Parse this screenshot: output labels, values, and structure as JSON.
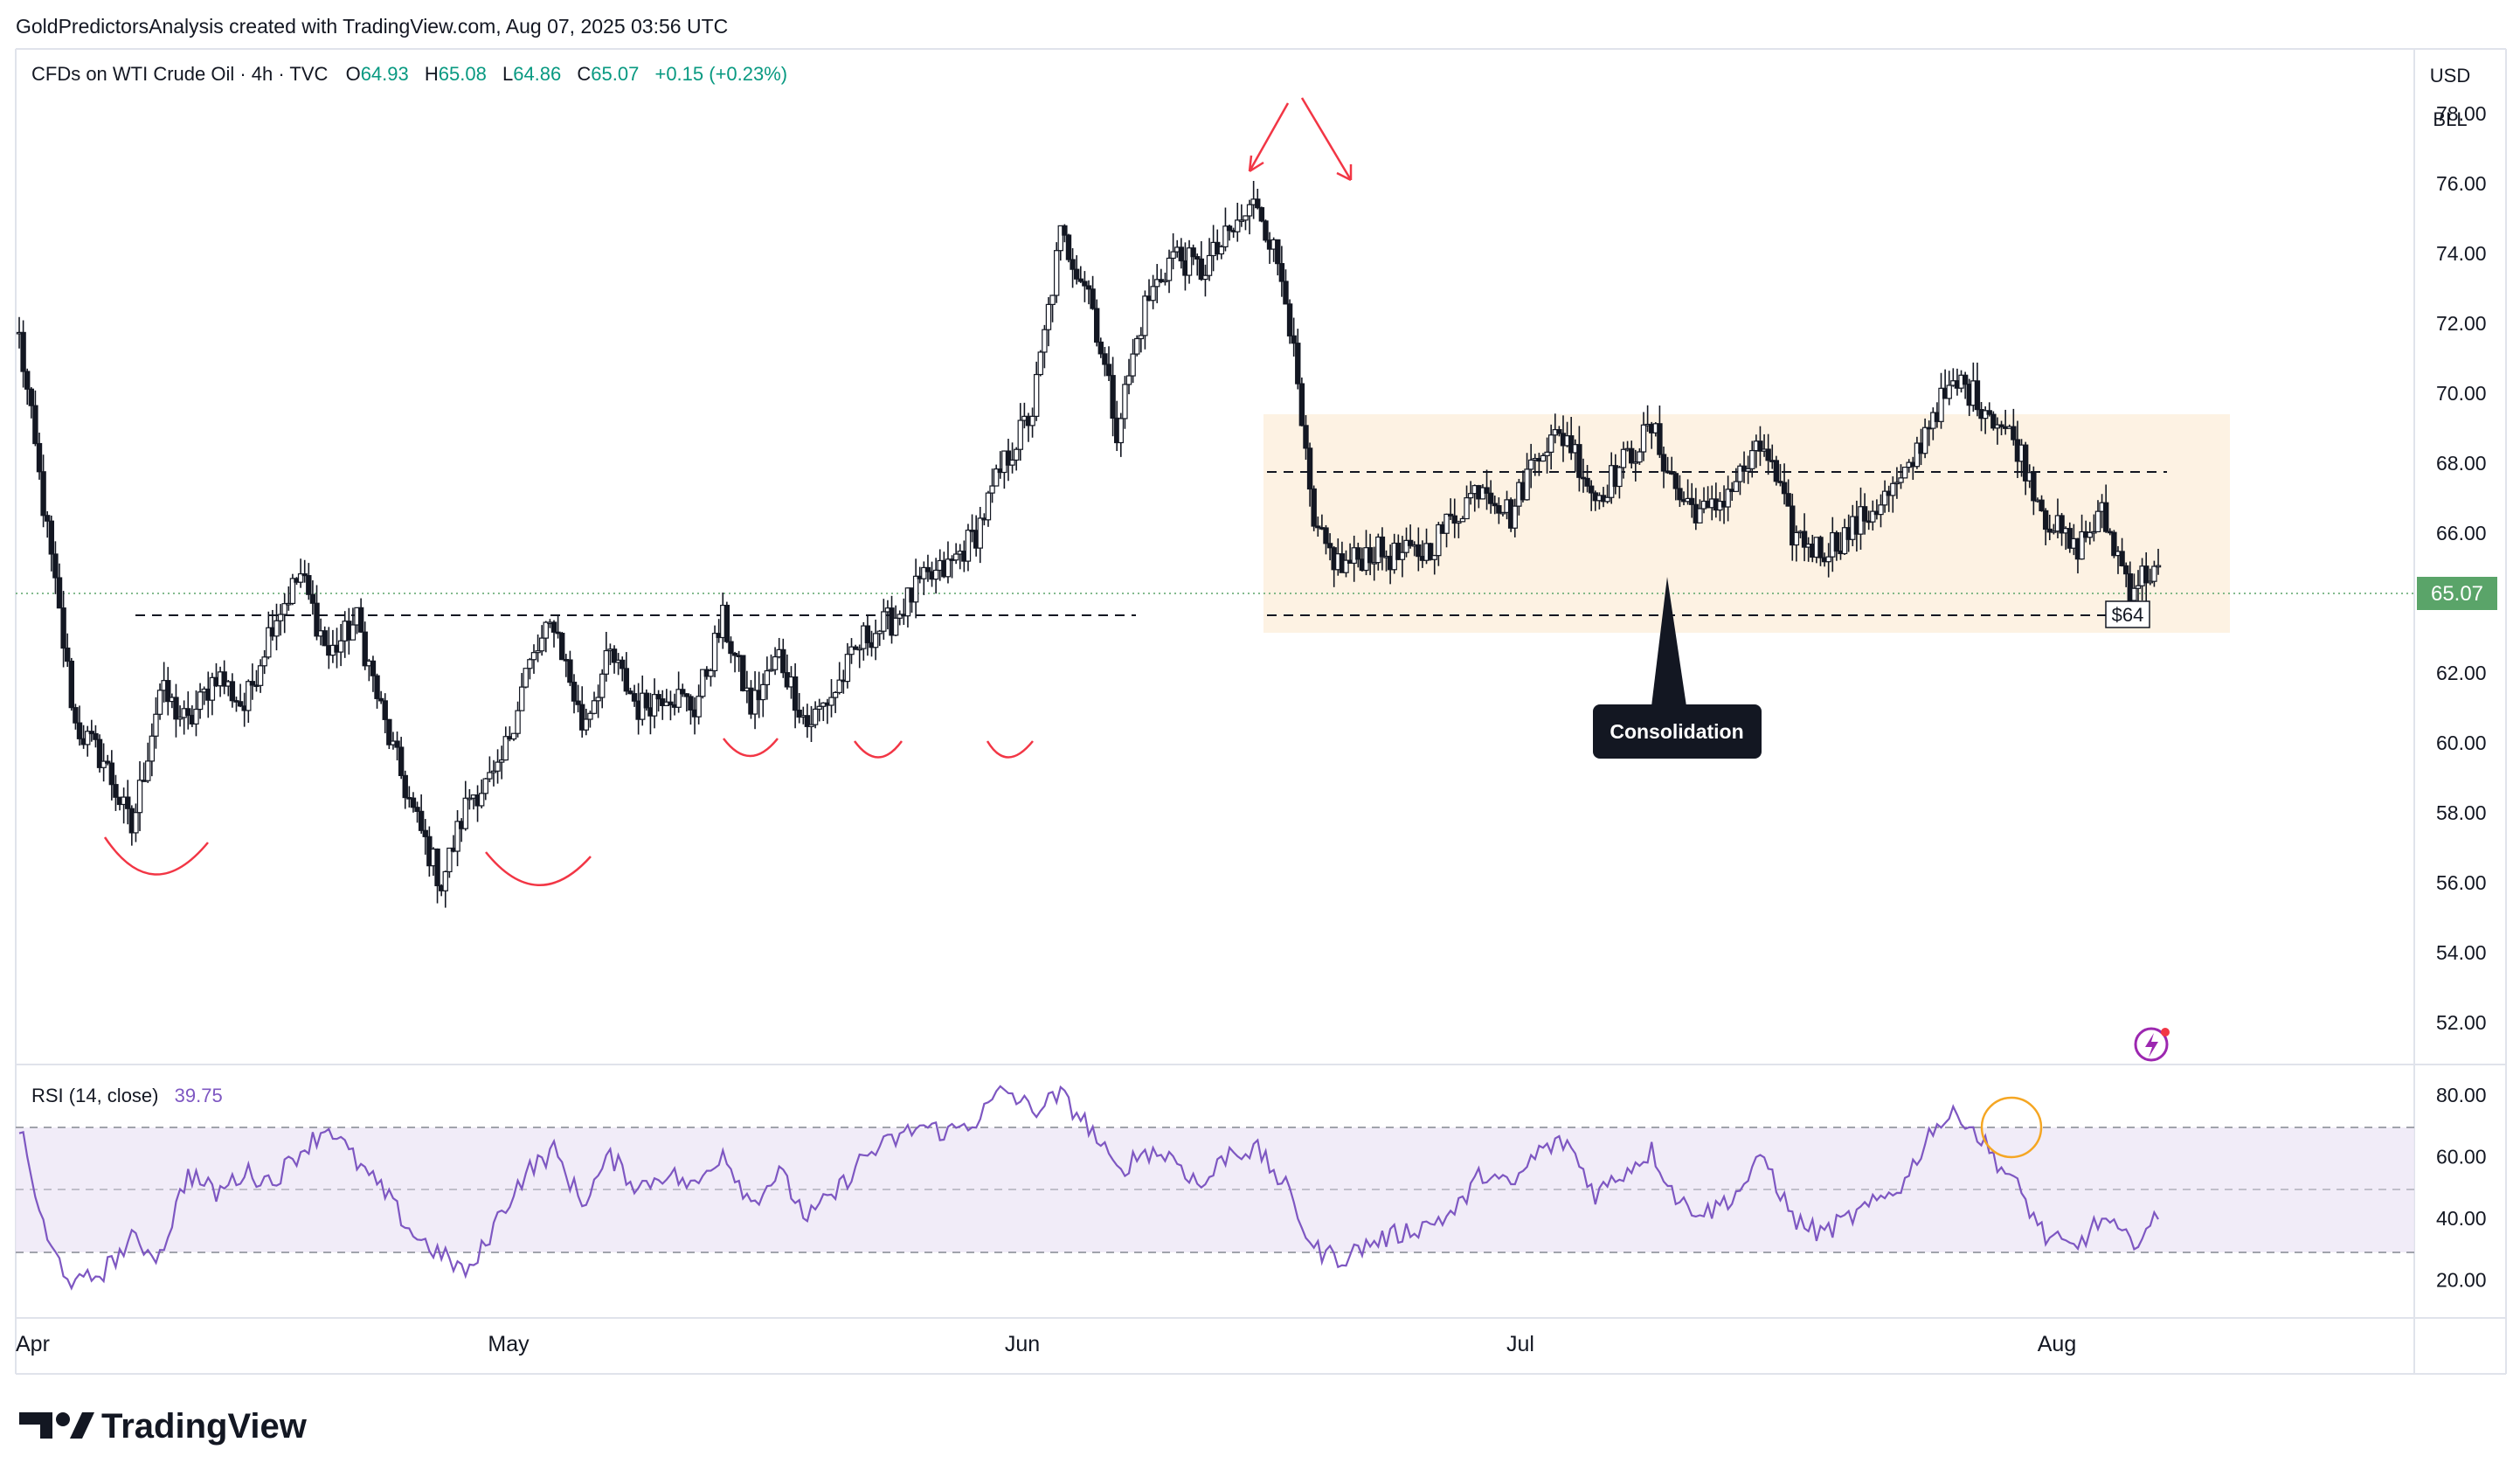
{
  "header": {
    "caption": "GoldPredictorsAnalysis created with TradingView.com, Aug 07, 2025 03:56 UTC"
  },
  "legend": {
    "symbol": "CFDs on WTI Crude Oil · 4h · TVC",
    "o_label": "O",
    "o_value": "64.93",
    "h_label": "H",
    "h_value": "65.08",
    "l_label": "L",
    "l_value": "64.86",
    "c_label": "C",
    "c_value": "65.07",
    "change": "+0.15 (+0.23%)"
  },
  "axis": {
    "currency": "USD",
    "unit": "BLL",
    "price_ticks": [
      "78.00",
      "76.00",
      "74.00",
      "72.00",
      "70.00",
      "68.00",
      "66.00",
      "64.00",
      "62.00",
      "60.00",
      "58.00",
      "56.00",
      "54.00",
      "52.00"
    ],
    "rsi_ticks": [
      "80.00",
      "60.00",
      "40.00",
      "20.00"
    ],
    "time_labels": [
      "Apr",
      "May",
      "Jun",
      "Jul",
      "Aug"
    ],
    "last_price": "65.07"
  },
  "annotations": {
    "consolidation": "Consolidation",
    "support_label": "$64"
  },
  "rsi": {
    "label": "RSI (14, close)",
    "value": "39.75"
  },
  "brand": {
    "name": "TradingView"
  },
  "colors": {
    "up": "#089981",
    "down": "#f23645",
    "candle": "#131722",
    "rsi_line": "#7e57c2",
    "zone": "#fdf2e3",
    "last_price_tag": "#5aa469",
    "annotation_red": "#f23645",
    "rsi_circle": "#f5a623"
  },
  "chart_data": [
    {
      "type": "candlestick",
      "title": "CFDs on WTI Crude Oil · 4h · TVC",
      "x_labels": [
        "Apr",
        "May",
        "Jun",
        "Jul",
        "Aug"
      ],
      "ylim": [
        51,
        79.5
      ],
      "close_path": [
        [
          "Apr",
          71.6
        ],
        [
          "Apr",
          66.0
        ],
        [
          "Apr",
          60.5
        ],
        [
          "Apr",
          59.5
        ],
        [
          "Apr",
          57.5
        ],
        [
          "Apr",
          61.5
        ],
        [
          "Apr",
          60.5
        ],
        [
          "Apr",
          62.0
        ],
        [
          "Apr",
          61.0
        ],
        [
          "Apr",
          63.5
        ],
        [
          "Apr",
          64.8
        ],
        [
          "Apr",
          62.5
        ],
        [
          "Apr",
          63.5
        ],
        [
          "May",
          60.5
        ],
        [
          "May",
          58.0
        ],
        [
          "May",
          56.0
        ],
        [
          "May",
          58.5
        ],
        [
          "May",
          59.0
        ],
        [
          "May",
          62.0
        ],
        [
          "May",
          63.5
        ],
        [
          "May",
          60.5
        ],
        [
          "May",
          62.5
        ],
        [
          "May",
          61.0
        ],
        [
          "May",
          61.5
        ],
        [
          "May",
          61.0
        ],
        [
          "May",
          63.5
        ],
        [
          "May",
          61.0
        ],
        [
          "May",
          62.5
        ],
        [
          "May",
          60.5
        ],
        [
          "Jun",
          61.5
        ],
        [
          "Jun",
          63.0
        ],
        [
          "Jun",
          63.5
        ],
        [
          "Jun",
          64.5
        ],
        [
          "Jun",
          65.0
        ],
        [
          "Jun",
          66.0
        ],
        [
          "Jun",
          68.0
        ],
        [
          "Jun",
          69.5
        ],
        [
          "Jun",
          74.5
        ],
        [
          "Jun",
          73.0
        ],
        [
          "Jun",
          69.0
        ],
        [
          "Jun",
          72.5
        ],
        [
          "Jun",
          74.0
        ],
        [
          "Jun",
          73.5
        ],
        [
          "Jun",
          74.5
        ],
        [
          "Jun",
          75.5
        ],
        [
          "Jun",
          73.0
        ],
        [
          "Jun",
          66.0
        ],
        [
          "Jun",
          65.0
        ],
        [
          "Jun",
          65.5
        ],
        [
          "Jun",
          65.3
        ],
        [
          "Jun",
          65.5
        ],
        [
          "Jul",
          66.5
        ],
        [
          "Jul",
          67.5
        ],
        [
          "Jul",
          66.5
        ],
        [
          "Jul",
          68.5
        ],
        [
          "Jul",
          68.8
        ],
        [
          "Jul",
          67.0
        ],
        [
          "Jul",
          68.0
        ],
        [
          "Jul",
          69.0
        ],
        [
          "Jul",
          67.0
        ],
        [
          "Jul",
          66.5
        ],
        [
          "Jul",
          67.5
        ],
        [
          "Jul",
          68.5
        ],
        [
          "Jul",
          66.0
        ],
        [
          "Jul",
          65.5
        ],
        [
          "Jul",
          66.0
        ],
        [
          "Jul",
          66.8
        ],
        [
          "Jul",
          67.5
        ],
        [
          "Jul",
          69.5
        ],
        [
          "Jul",
          70.3
        ],
        [
          "Jul",
          69.5
        ],
        [
          "Aug",
          68.5
        ],
        [
          "Aug",
          66.5
        ],
        [
          "Aug",
          65.5
        ],
        [
          "Aug",
          66.5
        ],
        [
          "Aug",
          64.5
        ],
        [
          "Aug",
          65.07
        ]
      ],
      "annotations": {
        "consolidation_zone": [
          63.9,
          70.5
        ],
        "support": 64.4,
        "resistance": 68.7,
        "last_close": 65.07
      }
    },
    {
      "type": "line",
      "title": "RSI (14, close)",
      "ylim": [
        10,
        88
      ],
      "levels": [
        70,
        50,
        30
      ],
      "y_path": [
        [
          70
        ],
        [
          32
        ],
        [
          18
        ],
        [
          23
        ],
        [
          33
        ],
        [
          28
        ],
        [
          55
        ],
        [
          48
        ],
        [
          55
        ],
        [
          52
        ],
        [
          62
        ],
        [
          70
        ],
        [
          58
        ],
        [
          48
        ],
        [
          35
        ],
        [
          28
        ],
        [
          22
        ],
        [
          40
        ],
        [
          55
        ],
        [
          62
        ],
        [
          45
        ],
        [
          60
        ],
        [
          50
        ],
        [
          55
        ],
        [
          50
        ],
        [
          62
        ],
        [
          45
        ],
        [
          55
        ],
        [
          40
        ],
        [
          48
        ],
        [
          60
        ],
        [
          65
        ],
        [
          70
        ],
        [
          68
        ],
        [
          72
        ],
        [
          82
        ],
        [
          75
        ],
        [
          80
        ],
        [
          70
        ],
        [
          55
        ],
        [
          62
        ],
        [
          60
        ],
        [
          50
        ],
        [
          62
        ],
        [
          62
        ],
        [
          50
        ],
        [
          30
        ],
        [
          27
        ],
        [
          32
        ],
        [
          35
        ],
        [
          38
        ],
        [
          42
        ],
        [
          55
        ],
        [
          50
        ],
        [
          62
        ],
        [
          65
        ],
        [
          48
        ],
        [
          55
        ],
        [
          62
        ],
        [
          45
        ],
        [
          42
        ],
        [
          48
        ],
        [
          60
        ],
        [
          40
        ],
        [
          35
        ],
        [
          40
        ],
        [
          45
        ],
        [
          52
        ],
        [
          70
        ],
        [
          74
        ],
        [
          62
        ],
        [
          50
        ],
        [
          34
        ],
        [
          30
        ],
        [
          40
        ],
        [
          32
        ],
        [
          39.75
        ]
      ]
    }
  ]
}
